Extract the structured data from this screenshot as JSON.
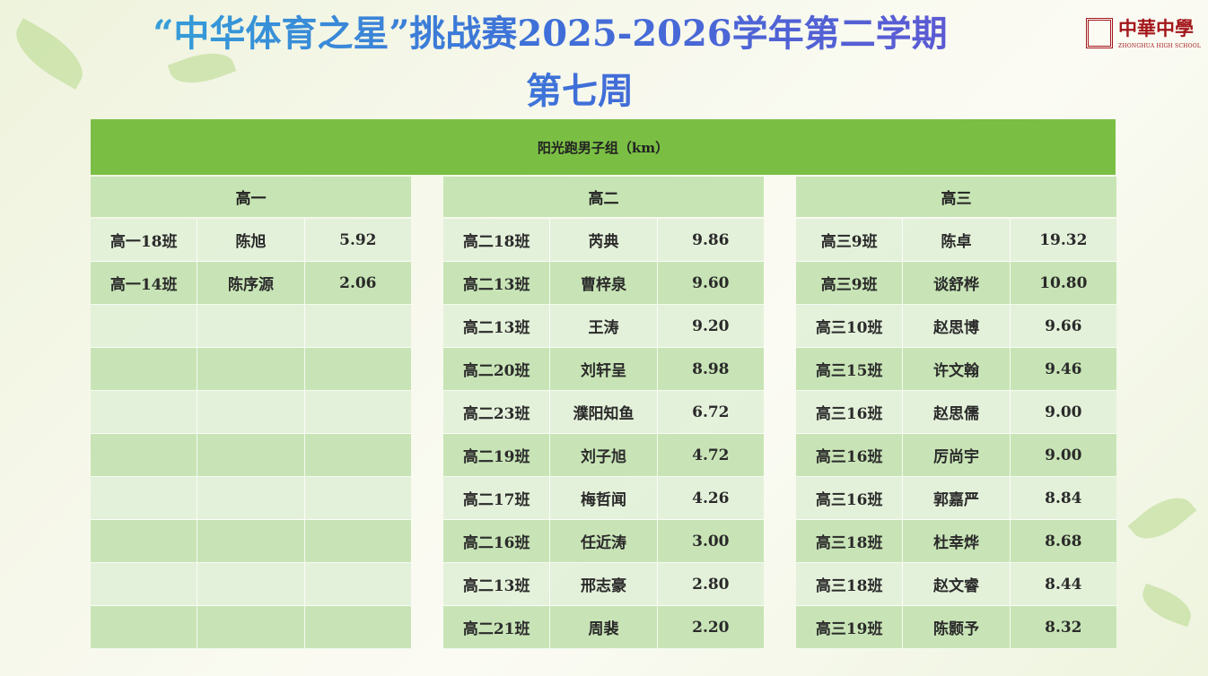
{
  "title": {
    "line1": "“中华体育之星”挑战赛2025-2026学年第二学期",
    "line2": "第七周"
  },
  "logo": {
    "name": "中華中學",
    "subtitle": "ZHONGHUA HIGH SCHOOL"
  },
  "section_title": "阳光跑男子组（km）",
  "groups": [
    {
      "name": "高一",
      "rows": [
        [
          "高一18班",
          "陈旭",
          "5.92"
        ],
        [
          "高一14班",
          "陈序源",
          "2.06"
        ],
        [
          "",
          "",
          ""
        ],
        [
          "",
          "",
          ""
        ],
        [
          "",
          "",
          ""
        ],
        [
          "",
          "",
          ""
        ],
        [
          "",
          "",
          ""
        ],
        [
          "",
          "",
          ""
        ],
        [
          "",
          "",
          ""
        ],
        [
          "",
          "",
          ""
        ]
      ]
    },
    {
      "name": "高二",
      "rows": [
        [
          "高二18班",
          "芮典",
          "9.86"
        ],
        [
          "高二13班",
          "曹梓泉",
          "9.60"
        ],
        [
          "高二13班",
          "王涛",
          "9.20"
        ],
        [
          "高二20班",
          "刘轩呈",
          "8.98"
        ],
        [
          "高二23班",
          "濮阳知鱼",
          "6.72"
        ],
        [
          "高二19班",
          "刘子旭",
          "4.72"
        ],
        [
          "高二17班",
          "梅哲闻",
          "4.26"
        ],
        [
          "高二16班",
          "任近涛",
          "3.00"
        ],
        [
          "高二13班",
          "邢志豪",
          "2.80"
        ],
        [
          "高二21班",
          "周裴",
          "2.20"
        ]
      ]
    },
    {
      "name": "高三",
      "rows": [
        [
          "高三9班",
          "陈卓",
          "19.32"
        ],
        [
          "高三9班",
          "谈舒桦",
          "10.80"
        ],
        [
          "高三10班",
          "赵思博",
          "9.66"
        ],
        [
          "高三15班",
          "许文翰",
          "9.46"
        ],
        [
          "高三16班",
          "赵思儒",
          "9.00"
        ],
        [
          "高三16班",
          "厉尚宇",
          "9.00"
        ],
        [
          "高三16班",
          "郭嘉严",
          "8.84"
        ],
        [
          "高三18班",
          "杜幸烨",
          "8.68"
        ],
        [
          "高三18班",
          "赵文睿",
          "8.44"
        ],
        [
          "高三19班",
          "陈颢予",
          "8.32"
        ]
      ]
    }
  ]
}
